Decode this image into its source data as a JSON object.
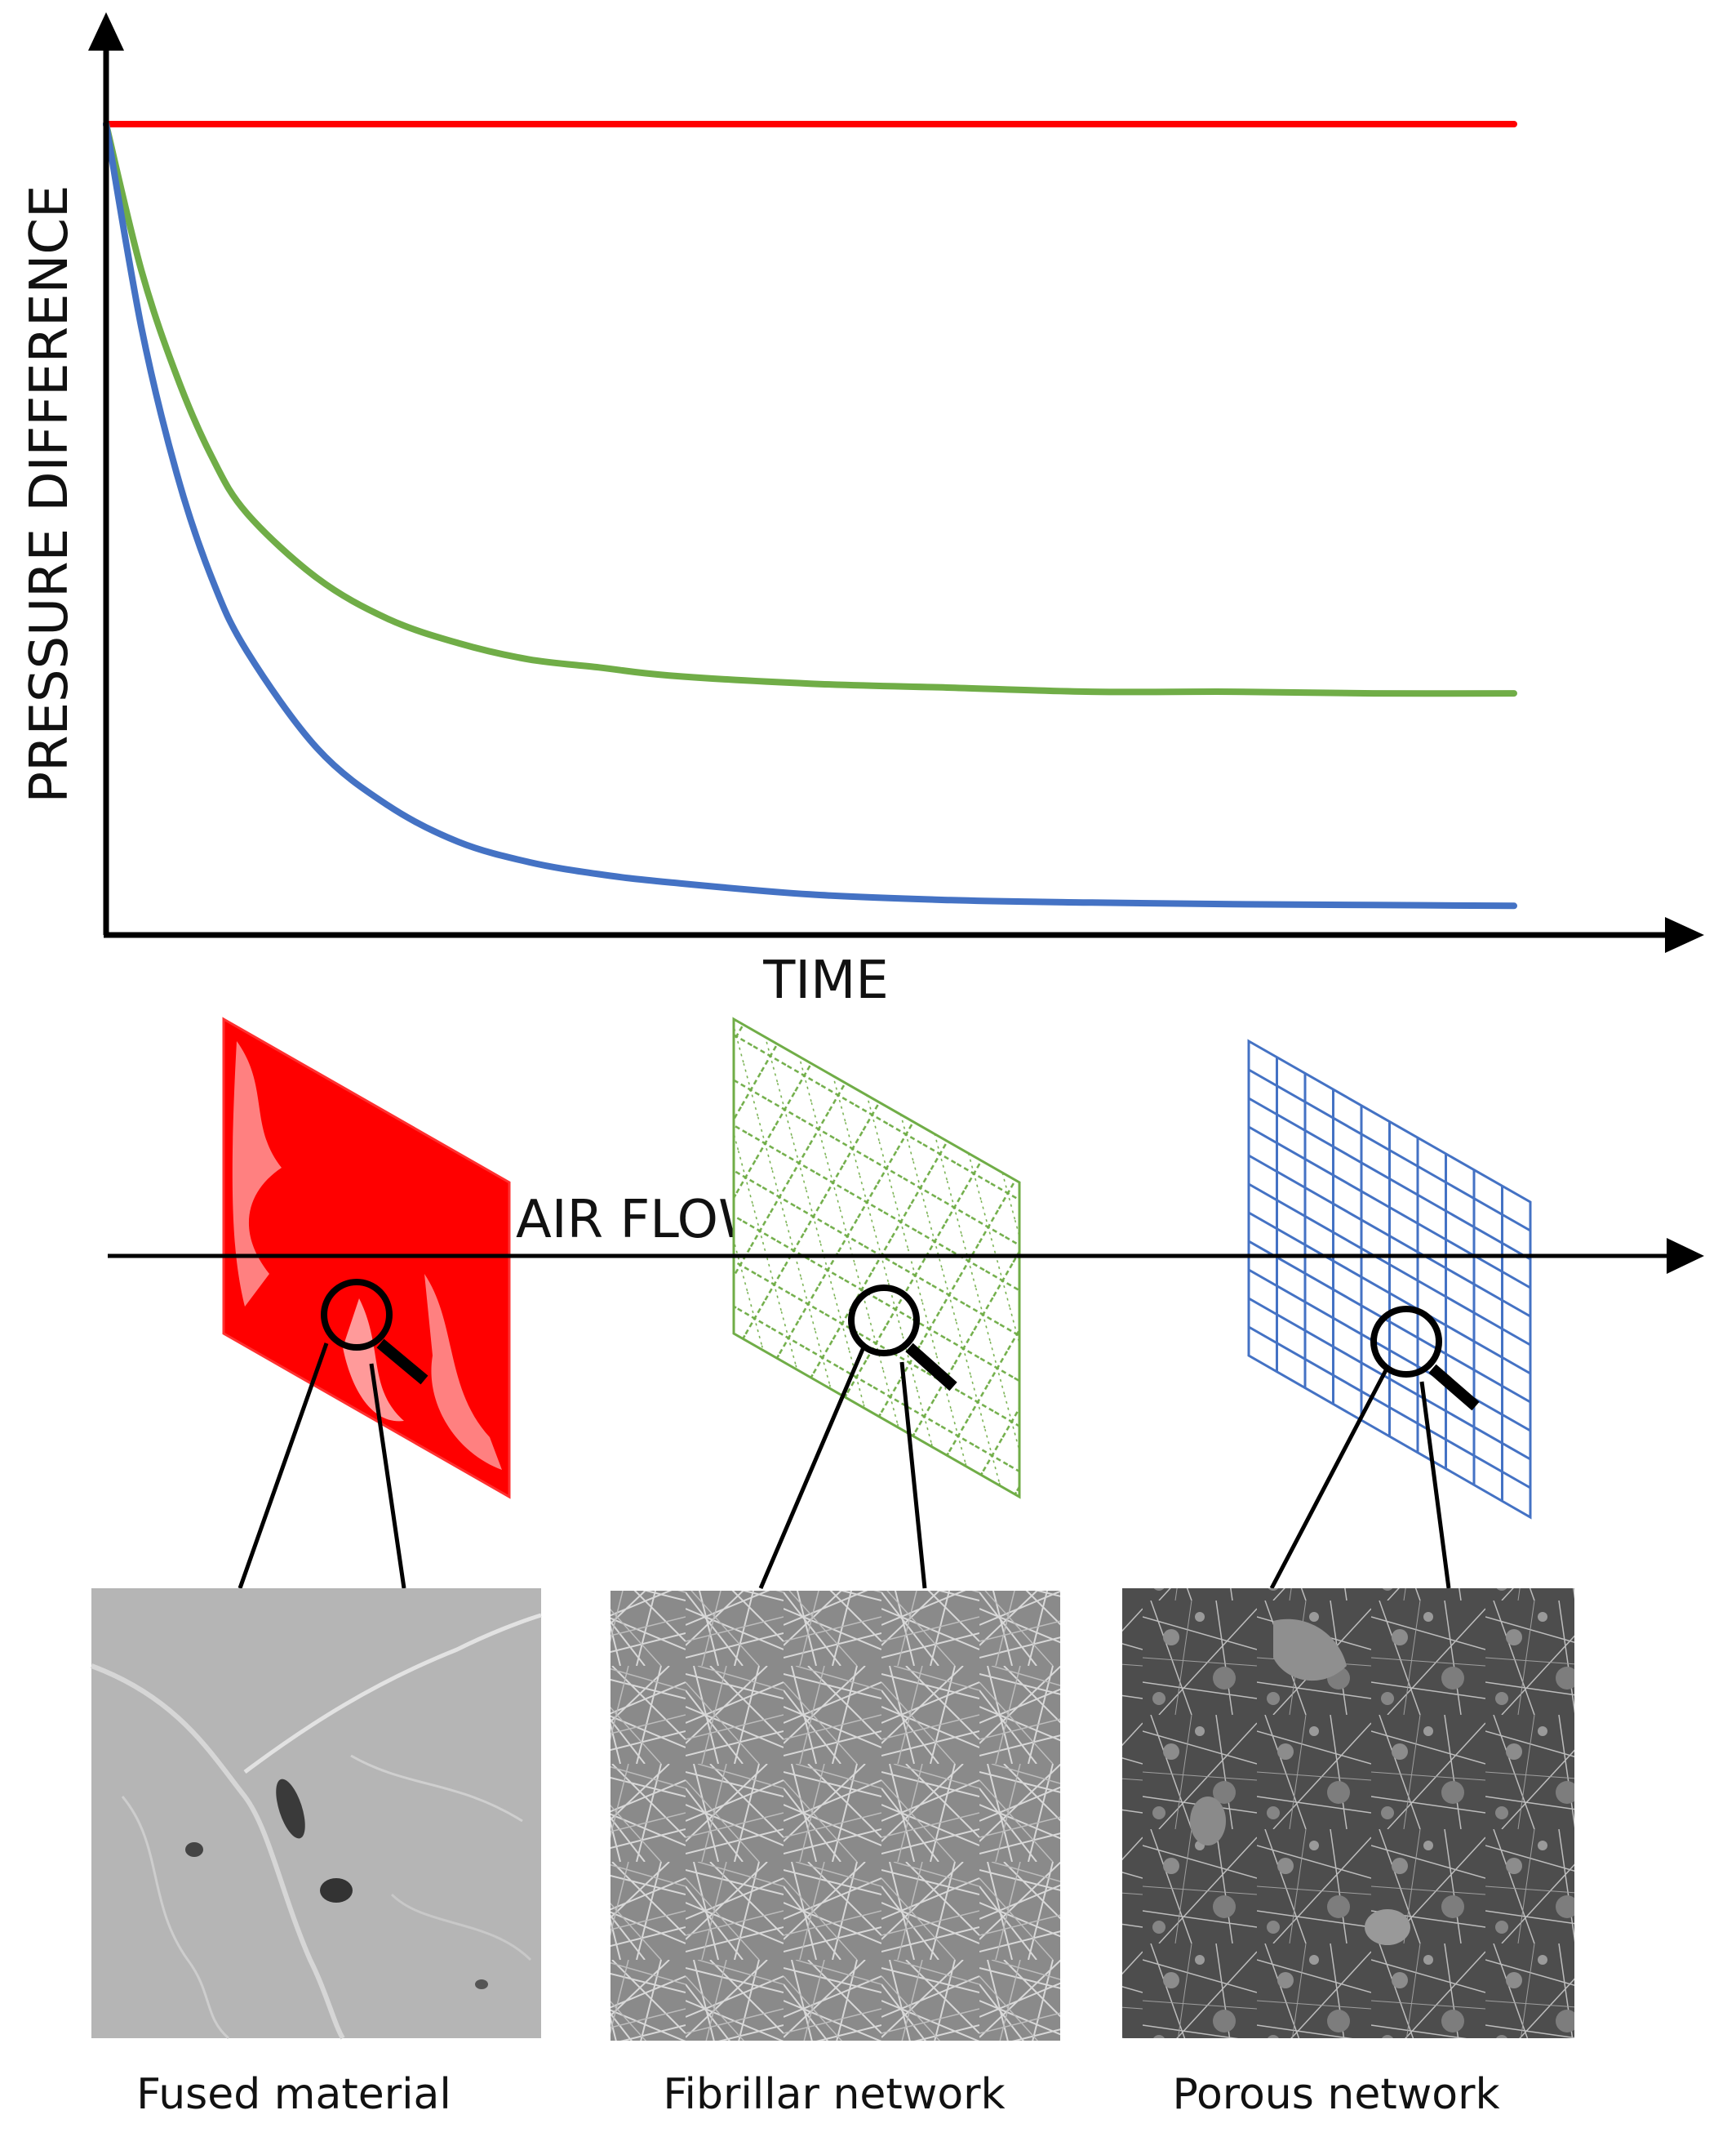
{
  "chart_data": {
    "type": "line",
    "xlabel": "TIME",
    "ylabel": "PRESSURE DIFFERENCE",
    "xlim": [
      0,
      10
    ],
    "ylim": [
      0,
      100
    ],
    "grid": false,
    "x": [
      0,
      0.25,
      0.5,
      0.75,
      1,
      1.5,
      2,
      2.5,
      3,
      3.5,
      4,
      5,
      6,
      7,
      8,
      9,
      10
    ],
    "series": [
      {
        "color": "#ff0000",
        "values": [
          100,
          100,
          100,
          100,
          100,
          100,
          100,
          100,
          100,
          100,
          100,
          100,
          100,
          100,
          100,
          100,
          100
        ]
      },
      {
        "color": "#70ad47",
        "values": [
          100,
          82,
          69,
          59,
          52,
          44,
          39,
          36,
          34,
          33,
          32,
          31,
          30.5,
          30,
          30,
          29.8,
          29.8
        ]
      },
      {
        "color": "#4472c4",
        "values": [
          100,
          75,
          57,
          44,
          35,
          23,
          16,
          11.5,
          9,
          7.5,
          6.5,
          5,
          4.3,
          4,
          3.8,
          3.7,
          3.6
        ]
      }
    ]
  },
  "diagram": {
    "airflow_label": "AIR FLOW",
    "panels": [
      {
        "key": "fused",
        "caption": "Fused material",
        "color": "#ff0000"
      },
      {
        "key": "fibrillar",
        "caption": "Fibrillar network",
        "color": "#70ad47"
      },
      {
        "key": "porous",
        "caption": "Porous network",
        "color": "#4472c4"
      }
    ]
  }
}
